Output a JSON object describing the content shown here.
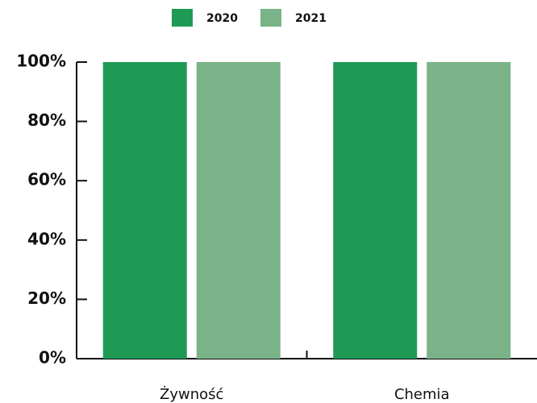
{
  "chart_data": {
    "type": "bar",
    "categories": [
      "Żywność",
      "Chemia"
    ],
    "series": [
      {
        "name": "2020",
        "color": "#1e9a55",
        "values": [
          100,
          100
        ]
      },
      {
        "name": "2021",
        "color": "#7ab387",
        "values": [
          100,
          100
        ]
      }
    ],
    "ylim": [
      0,
      100
    ],
    "yticks": [
      {
        "value": 0,
        "label": "0%"
      },
      {
        "value": 20,
        "label": "20%"
      },
      {
        "value": 40,
        "label": "40%"
      },
      {
        "value": 60,
        "label": "60%"
      },
      {
        "value": 80,
        "label": "80%"
      },
      {
        "value": 100,
        "label": "100%"
      }
    ]
  }
}
